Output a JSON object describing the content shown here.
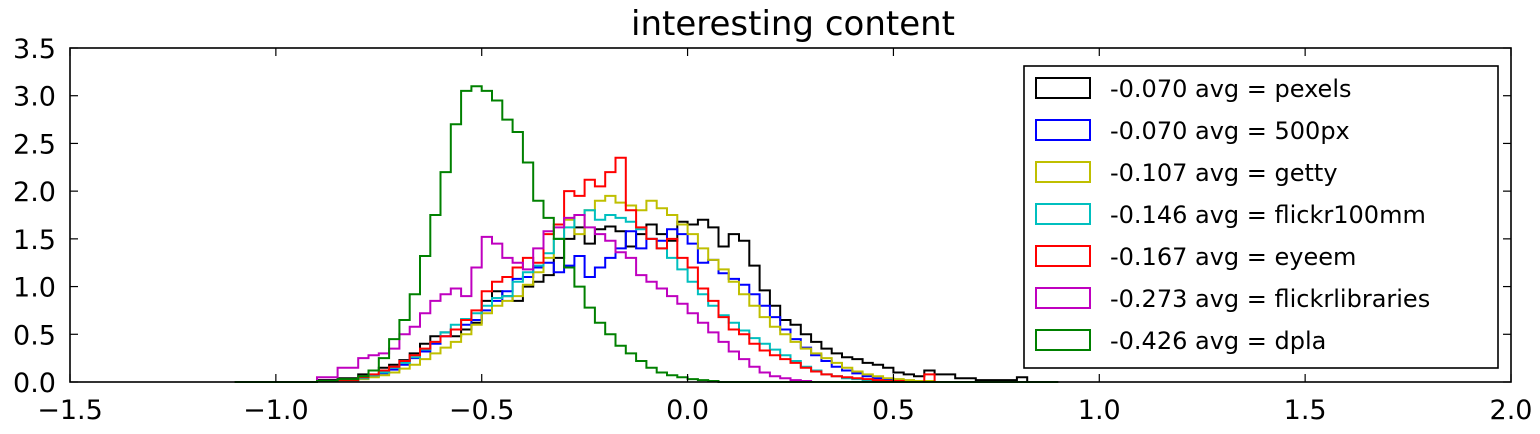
{
  "chart_data": {
    "type": "step-histogram",
    "title": "interesting content",
    "xlabel": "",
    "ylabel": "",
    "xlim": [
      -1.5,
      2.0
    ],
    "ylim": [
      0.0,
      3.5
    ],
    "x_ticks": [
      "−1.5",
      "−1.0",
      "−0.5",
      "0.0",
      "0.5",
      "1.0",
      "1.5",
      "2.0"
    ],
    "y_ticks": [
      "0.0",
      "0.5",
      "1.0",
      "1.5",
      "2.0",
      "2.5",
      "3.0",
      "3.5"
    ],
    "legend_position": "upper right",
    "grid": false,
    "bin_edges": [
      -1.1,
      -1.0,
      -0.9,
      -0.85,
      -0.8,
      -0.775,
      -0.75,
      -0.725,
      -0.7,
      -0.675,
      -0.65,
      -0.625,
      -0.6,
      -0.575,
      -0.55,
      -0.525,
      -0.5,
      -0.475,
      -0.45,
      -0.425,
      -0.4,
      -0.375,
      -0.35,
      -0.325,
      -0.3,
      -0.275,
      -0.25,
      -0.225,
      -0.2,
      -0.175,
      -0.15,
      -0.125,
      -0.1,
      -0.075,
      -0.05,
      -0.025,
      0.0,
      0.025,
      0.05,
      0.075,
      0.1,
      0.125,
      0.15,
      0.175,
      0.2,
      0.225,
      0.25,
      0.275,
      0.3,
      0.325,
      0.35,
      0.375,
      0.4,
      0.425,
      0.45,
      0.475,
      0.5,
      0.525,
      0.55,
      0.575,
      0.6,
      0.65,
      0.7,
      0.8,
      0.825,
      0.9
    ],
    "series": [
      {
        "name": "-0.070 avg = pexels",
        "color": "#000000",
        "values": [
          0.0,
          0.0,
          0.02,
          0.04,
          0.08,
          0.12,
          0.15,
          0.18,
          0.23,
          0.3,
          0.4,
          0.48,
          0.52,
          0.48,
          0.55,
          0.62,
          0.85,
          0.95,
          0.9,
          0.85,
          1.0,
          1.05,
          1.12,
          1.3,
          1.5,
          1.62,
          1.45,
          1.6,
          1.63,
          1.58,
          1.42,
          1.55,
          1.65,
          1.55,
          1.48,
          1.68,
          1.65,
          1.7,
          1.62,
          1.42,
          1.55,
          1.48,
          1.22,
          0.96,
          0.8,
          0.65,
          0.6,
          0.5,
          0.42,
          0.35,
          0.3,
          0.26,
          0.24,
          0.2,
          0.18,
          0.15,
          0.1,
          0.08,
          0.06,
          0.12,
          0.08,
          0.04,
          0.02,
          0.05,
          0.0
        ]
      },
      {
        "name": "-0.070 avg = 500px",
        "color": "#0000ff",
        "values": [
          0.0,
          0.0,
          0.01,
          0.02,
          0.04,
          0.06,
          0.09,
          0.13,
          0.18,
          0.25,
          0.32,
          0.4,
          0.48,
          0.55,
          0.6,
          0.65,
          0.75,
          0.85,
          0.95,
          1.08,
          1.1,
          1.2,
          1.25,
          1.15,
          1.22,
          1.32,
          1.1,
          1.2,
          1.3,
          1.4,
          1.58,
          1.4,
          1.5,
          1.48,
          1.6,
          1.55,
          1.45,
          1.25,
          1.28,
          1.14,
          1.08,
          1.02,
          0.92,
          0.8,
          0.68,
          0.55,
          0.45,
          0.36,
          0.28,
          0.22,
          0.16,
          0.12,
          0.09,
          0.06,
          0.04,
          0.03,
          0.02,
          0.01,
          0.01,
          0.0,
          0.0,
          0.0,
          0.0,
          0.0,
          0.0
        ]
      },
      {
        "name": "-0.107 avg = getty",
        "color": "#bfbf00",
        "values": [
          0.0,
          0.0,
          0.01,
          0.02,
          0.03,
          0.05,
          0.07,
          0.1,
          0.14,
          0.18,
          0.24,
          0.3,
          0.36,
          0.42,
          0.5,
          0.6,
          0.72,
          0.8,
          0.85,
          0.9,
          1.02,
          1.15,
          1.3,
          1.5,
          1.7,
          1.55,
          1.8,
          1.9,
          1.95,
          1.88,
          1.85,
          1.8,
          1.9,
          1.82,
          1.75,
          1.65,
          1.55,
          1.4,
          1.28,
          1.18,
          1.05,
          0.92,
          0.8,
          0.68,
          0.58,
          0.5,
          0.42,
          0.35,
          0.3,
          0.25,
          0.2,
          0.15,
          0.11,
          0.08,
          0.06,
          0.04,
          0.03,
          0.02,
          0.01,
          0.01,
          0.0,
          0.0,
          0.0,
          0.0,
          0.0
        ]
      },
      {
        "name": "-0.146 avg = flickr100mm",
        "color": "#00bfbf",
        "values": [
          0.0,
          0.0,
          0.01,
          0.02,
          0.04,
          0.07,
          0.1,
          0.15,
          0.2,
          0.26,
          0.34,
          0.42,
          0.52,
          0.6,
          0.66,
          0.72,
          0.8,
          0.88,
          0.9,
          1.05,
          1.15,
          1.22,
          1.35,
          1.5,
          1.62,
          1.75,
          1.8,
          1.7,
          1.75,
          1.72,
          1.68,
          1.6,
          1.5,
          1.4,
          1.3,
          1.18,
          1.05,
          0.92,
          0.8,
          0.7,
          0.62,
          0.54,
          0.46,
          0.4,
          0.34,
          0.28,
          0.22,
          0.16,
          0.12,
          0.08,
          0.06,
          0.04,
          0.03,
          0.02,
          0.01,
          0.01,
          0.0,
          0.0,
          0.0,
          0.0,
          0.0,
          0.0,
          0.0,
          0.0,
          0.0
        ]
      },
      {
        "name": "-0.167 avg = eyeem",
        "color": "#ff0000",
        "values": [
          0.0,
          0.0,
          0.01,
          0.02,
          0.05,
          0.08,
          0.12,
          0.16,
          0.22,
          0.28,
          0.35,
          0.42,
          0.48,
          0.55,
          0.65,
          0.75,
          0.95,
          1.05,
          1.1,
          1.2,
          1.3,
          1.25,
          1.55,
          1.65,
          2.0,
          1.95,
          2.12,
          2.05,
          2.2,
          2.35,
          1.8,
          1.62,
          1.5,
          1.4,
          1.5,
          1.3,
          1.2,
          0.98,
          0.85,
          0.68,
          0.55,
          0.5,
          0.4,
          0.33,
          0.28,
          0.24,
          0.2,
          0.15,
          0.11,
          0.08,
          0.06,
          0.05,
          0.04,
          0.03,
          0.02,
          0.01,
          0.01,
          0.0,
          0.0,
          0.08,
          0.0,
          0.0,
          0.0,
          0.0,
          0.0
        ]
      },
      {
        "name": "-0.273 avg = flickrlibraries",
        "color": "#bf00bf",
        "values": [
          0.0,
          0.0,
          0.05,
          0.15,
          0.25,
          0.28,
          0.3,
          0.35,
          0.5,
          0.58,
          0.72,
          0.85,
          0.92,
          0.98,
          0.9,
          1.2,
          1.52,
          1.45,
          1.3,
          1.25,
          1.18,
          1.4,
          1.58,
          1.62,
          1.72,
          1.75,
          1.62,
          1.55,
          1.48,
          1.36,
          1.3,
          1.12,
          1.05,
          0.98,
          0.9,
          0.82,
          0.72,
          0.62,
          0.52,
          0.42,
          0.32,
          0.24,
          0.16,
          0.1,
          0.06,
          0.04,
          0.02,
          0.01,
          0.0,
          0.0,
          0.0,
          0.0,
          0.0,
          0.0,
          0.0,
          0.0,
          0.0,
          0.0,
          0.0,
          0.0,
          0.0,
          0.0,
          0.0,
          0.0,
          0.0
        ]
      },
      {
        "name": "-0.426 avg = dpla",
        "color": "#008000",
        "values": [
          0.0,
          0.0,
          0.01,
          0.03,
          0.06,
          0.12,
          0.25,
          0.45,
          0.65,
          0.92,
          1.32,
          1.75,
          2.2,
          2.7,
          3.05,
          3.1,
          3.05,
          2.95,
          2.75,
          2.62,
          2.3,
          1.9,
          1.72,
          1.5,
          1.2,
          1.0,
          0.78,
          0.62,
          0.5,
          0.38,
          0.3,
          0.22,
          0.15,
          0.1,
          0.07,
          0.05,
          0.03,
          0.02,
          0.01,
          0.0,
          0.0,
          0.0,
          0.0,
          0.0,
          0.0,
          0.0,
          0.0,
          0.0,
          0.0,
          0.0,
          0.0,
          0.0,
          0.0,
          0.0,
          0.0,
          0.0,
          0.0,
          0.0,
          0.0,
          0.0,
          0.0,
          0.0,
          0.0,
          0.0,
          0.0
        ]
      }
    ]
  }
}
